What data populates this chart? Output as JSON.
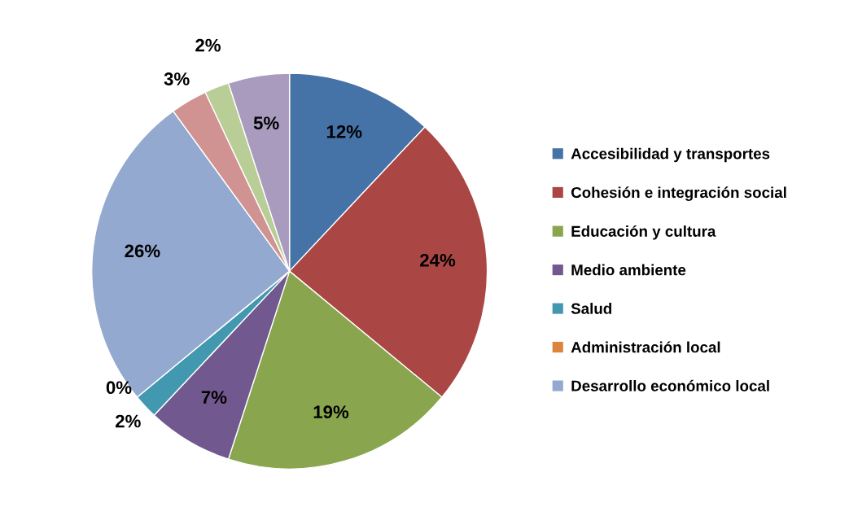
{
  "chart_data": {
    "type": "pie",
    "categories": [
      "Accesibilidad y transportes",
      "Cohesión e integración social",
      "Educación y cultura",
      "Medio ambiente",
      "Salud",
      "Administración local",
      "Desarrollo económico local",
      null,
      null,
      null
    ],
    "values": [
      12,
      24,
      19,
      7,
      2,
      0,
      26,
      3,
      2,
      5
    ],
    "colors": [
      "#4572a7",
      "#aa4643",
      "#89a54e",
      "#71588f",
      "#4198af",
      "#db843d",
      "#93a9cf",
      "#d19392",
      "#b9cd96",
      "#a99bbd"
    ],
    "value_labels": [
      "12%",
      "24%",
      "19%",
      "7%",
      "2%",
      "0%",
      "26%",
      "3%",
      "2%",
      "5%"
    ],
    "legend": "right"
  }
}
